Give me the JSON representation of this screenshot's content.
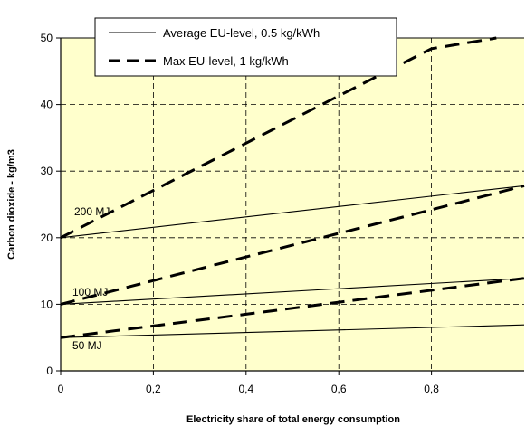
{
  "chart_data": {
    "type": "line",
    "xlabel": "Electricity share of total energy consumption",
    "ylabel": "Carbon dioxide - kg/m3",
    "xlim": [
      0,
      1
    ],
    "ylim": [
      0,
      50
    ],
    "x_ticks": [
      "0",
      "0,2",
      "0,4",
      "0,6",
      "0,8"
    ],
    "y_ticks": [
      "0",
      "10",
      "20",
      "30",
      "40",
      "50"
    ],
    "grid": true,
    "grid_style": "dashed",
    "plot_background": "#ffffcc",
    "legend_position": "top-center",
    "legend": [
      {
        "label": "Average EU-level, 0.5 kg/kWh",
        "style": "solid"
      },
      {
        "label": "Max EU-level, 1 kg/kWh",
        "style": "dashed"
      }
    ],
    "line_labels": [
      "200 MJ",
      "100 MJ",
      "50 MJ"
    ],
    "series": [
      {
        "group": "200 MJ",
        "style": "solid",
        "x": [
          0,
          1
        ],
        "y": [
          20,
          27.8
        ]
      },
      {
        "group": "200 MJ",
        "style": "dashed",
        "x": [
          0,
          0.4,
          0.8,
          0.94
        ],
        "y": [
          20,
          34.2,
          48.4,
          50
        ]
      },
      {
        "group": "100 MJ",
        "style": "solid",
        "x": [
          0,
          1
        ],
        "y": [
          10,
          13.9
        ]
      },
      {
        "group": "100 MJ",
        "style": "dashed",
        "x": [
          0,
          0.4,
          0.8,
          1
        ],
        "y": [
          10,
          17.1,
          24.2,
          27.8
        ]
      },
      {
        "group": "50 MJ",
        "style": "solid",
        "x": [
          0,
          1
        ],
        "y": [
          5,
          6.9
        ]
      },
      {
        "group": "50 MJ",
        "style": "dashed",
        "x": [
          0,
          0.4,
          0.8,
          1
        ],
        "y": [
          5,
          8.5,
          12.1,
          13.9
        ]
      }
    ]
  }
}
